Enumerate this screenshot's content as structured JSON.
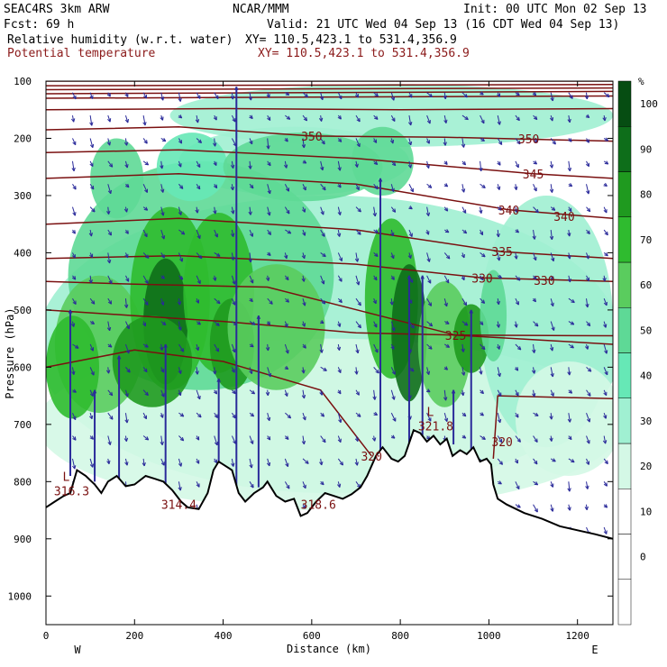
{
  "header": {
    "model": "SEAC4RS  3km ARW",
    "org": "NCAR/MMM",
    "init": "Init: 00 UTC Mon 02 Sep 13",
    "fcst": "Fcst:   69 h",
    "valid": "Valid: 21 UTC Wed 04 Sep 13 (16 CDT Wed 04 Sep 13)",
    "field1": "Relative humidity (w.r.t. water)",
    "field1_xy": "XY= 110.5,423.1 to 531.4,356.9",
    "field2": "Potential temperature",
    "field2_xy": "XY= 110.5,423.1 to 531.4,356.9"
  },
  "chart_data": {
    "type": "heatmap",
    "title": "",
    "xlabel": "Distance (km)",
    "ylabel": "Pressure (hPa)",
    "xlim": [
      0,
      1280
    ],
    "ylim": [
      1050,
      100
    ],
    "x_ticks": [
      0,
      200,
      400,
      600,
      800,
      1000,
      1200
    ],
    "y_ticks": [
      100,
      200,
      300,
      400,
      500,
      600,
      700,
      800,
      900,
      1000
    ],
    "x_end_labels": {
      "left": "W",
      "right": "E"
    },
    "colorbar": {
      "unit": "%",
      "ticks": [
        0,
        10,
        20,
        30,
        40,
        50,
        60,
        70,
        80,
        90,
        100
      ],
      "colors": [
        "#ffffff",
        "#ffffff",
        "#ffffff",
        "#d4f8e6",
        "#a0f0d2",
        "#66e8b6",
        "#5ed996",
        "#5acc5e",
        "#2fbb2f",
        "#1f9a1f",
        "#0e6e1a",
        "#064d12"
      ]
    },
    "theta_contours": {
      "color": "#7a1010",
      "labels": [
        {
          "text": "350",
          "x": 600,
          "p": 196
        },
        {
          "text": "350",
          "x": 1090,
          "p": 201
        },
        {
          "text": "345",
          "x": 1100,
          "p": 262
        },
        {
          "text": "340",
          "x": 1045,
          "p": 325
        },
        {
          "text": "340",
          "x": 1170,
          "p": 336
        },
        {
          "text": "335",
          "x": 1030,
          "p": 398
        },
        {
          "text": "330",
          "x": 985,
          "p": 444
        },
        {
          "text": "330",
          "x": 1125,
          "p": 448
        },
        {
          "text": "325",
          "x": 925,
          "p": 544
        },
        {
          "text": "320",
          "x": 1030,
          "p": 730
        },
        {
          "text": "320",
          "x": 735,
          "p": 755
        }
      ],
      "min_labels": [
        {
          "mark": "L",
          "value": "316.3",
          "x": 58,
          "p": 808
        },
        {
          "mark": "",
          "value": "314.4",
          "x": 300,
          "p": 832
        },
        {
          "mark": "",
          "value": "318.6",
          "x": 615,
          "p": 832
        },
        {
          "mark": "L",
          "value": "321.8",
          "x": 880,
          "p": 695
        }
      ]
    },
    "terrain_color": "#000000",
    "vector_color": "#2a2a9a"
  }
}
